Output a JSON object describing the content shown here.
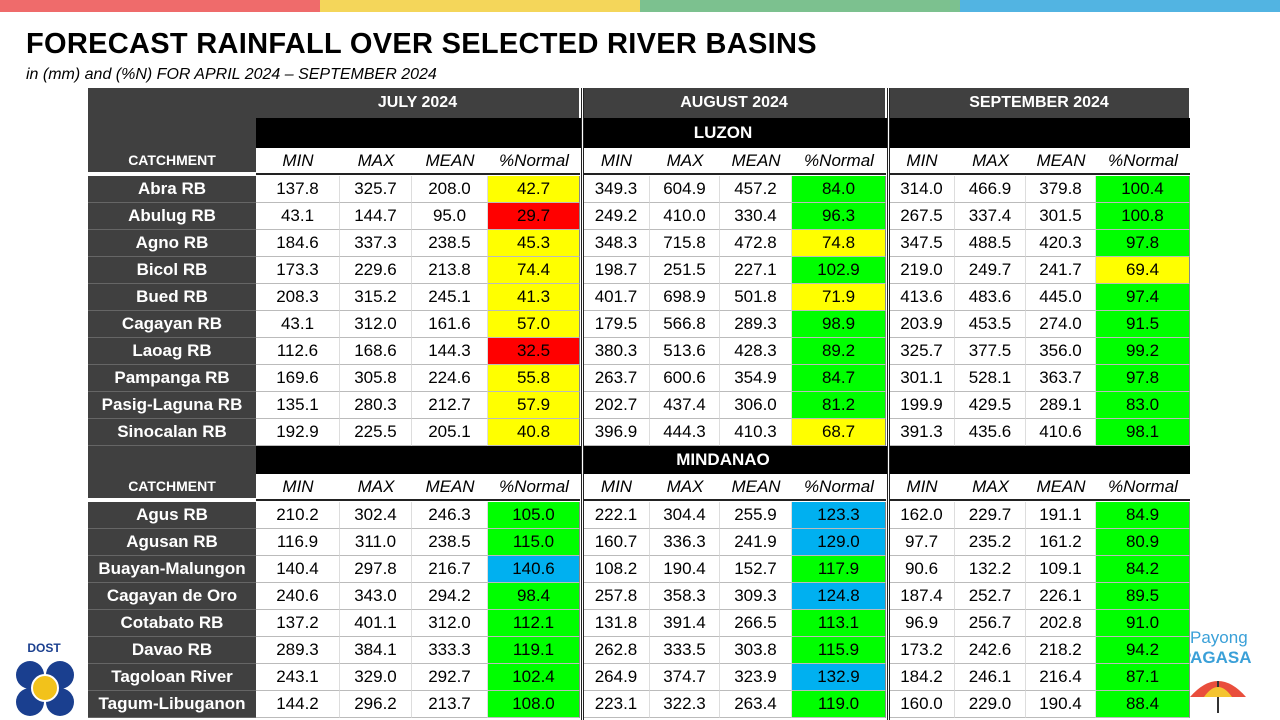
{
  "header": {
    "title": "FORECAST RAINFALL OVER SELECTED RIVER BASINS",
    "subtitle": "in (mm) and (%N) FOR  APRIL 2024 – SEPTEMBER 2024"
  },
  "table": {
    "months": [
      "JULY 2024",
      "AUGUST 2024",
      "SEPTEMBER 2024"
    ],
    "columns": [
      "MIN",
      "MAX",
      "MEAN",
      "%Normal"
    ],
    "catchment_label": "CATCHMENT",
    "sections": [
      {
        "region": "LUZON",
        "rows": [
          {
            "name": "Abra RB",
            "cells": [
              "137.8",
              "325.7",
              "208.0",
              "42.7",
              "349.3",
              "604.9",
              "457.2",
              "84.0",
              "314.0",
              "466.9",
              "379.8",
              "100.4"
            ],
            "normal_colors": [
              "#ffff00",
              "#00ff00",
              "#00ff00"
            ]
          },
          {
            "name": "Abulug RB",
            "cells": [
              "43.1",
              "144.7",
              "95.0",
              "29.7",
              "249.2",
              "410.0",
              "330.4",
              "96.3",
              "267.5",
              "337.4",
              "301.5",
              "100.8"
            ],
            "normal_colors": [
              "#ff0000",
              "#00ff00",
              "#00ff00"
            ]
          },
          {
            "name": "Agno RB",
            "cells": [
              "184.6",
              "337.3",
              "238.5",
              "45.3",
              "348.3",
              "715.8",
              "472.8",
              "74.8",
              "347.5",
              "488.5",
              "420.3",
              "97.8"
            ],
            "normal_colors": [
              "#ffff00",
              "#ffff00",
              "#00ff00"
            ]
          },
          {
            "name": "Bicol RB",
            "cells": [
              "173.3",
              "229.6",
              "213.8",
              "74.4",
              "198.7",
              "251.5",
              "227.1",
              "102.9",
              "219.0",
              "249.7",
              "241.7",
              "69.4"
            ],
            "normal_colors": [
              "#ffff00",
              "#00ff00",
              "#ffff00"
            ]
          },
          {
            "name": "Bued RB",
            "cells": [
              "208.3",
              "315.2",
              "245.1",
              "41.3",
              "401.7",
              "698.9",
              "501.8",
              "71.9",
              "413.6",
              "483.6",
              "445.0",
              "97.4"
            ],
            "normal_colors": [
              "#ffff00",
              "#ffff00",
              "#00ff00"
            ]
          },
          {
            "name": "Cagayan RB",
            "cells": [
              "43.1",
              "312.0",
              "161.6",
              "57.0",
              "179.5",
              "566.8",
              "289.3",
              "98.9",
              "203.9",
              "453.5",
              "274.0",
              "91.5"
            ],
            "normal_colors": [
              "#ffff00",
              "#00ff00",
              "#00ff00"
            ]
          },
          {
            "name": "Laoag RB",
            "cells": [
              "112.6",
              "168.6",
              "144.3",
              "32.5",
              "380.3",
              "513.6",
              "428.3",
              "89.2",
              "325.7",
              "377.5",
              "356.0",
              "99.2"
            ],
            "normal_colors": [
              "#ff0000",
              "#00ff00",
              "#00ff00"
            ]
          },
          {
            "name": "Pampanga RB",
            "cells": [
              "169.6",
              "305.8",
              "224.6",
              "55.8",
              "263.7",
              "600.6",
              "354.9",
              "84.7",
              "301.1",
              "528.1",
              "363.7",
              "97.8"
            ],
            "normal_colors": [
              "#ffff00",
              "#00ff00",
              "#00ff00"
            ]
          },
          {
            "name": "Pasig-Laguna RB",
            "cells": [
              "135.1",
              "280.3",
              "212.7",
              "57.9",
              "202.7",
              "437.4",
              "306.0",
              "81.2",
              "199.9",
              "429.5",
              "289.1",
              "83.0"
            ],
            "normal_colors": [
              "#ffff00",
              "#00ff00",
              "#00ff00"
            ]
          },
          {
            "name": "Sinocalan RB",
            "cells": [
              "192.9",
              "225.5",
              "205.1",
              "40.8",
              "396.9",
              "444.3",
              "410.3",
              "68.7",
              "391.3",
              "435.6",
              "410.6",
              "98.1"
            ],
            "normal_colors": [
              "#ffff00",
              "#ffff00",
              "#00ff00"
            ]
          }
        ]
      },
      {
        "region": "MINDANAO",
        "rows": [
          {
            "name": "Agus RB",
            "cells": [
              "210.2",
              "302.4",
              "246.3",
              "105.0",
              "222.1",
              "304.4",
              "255.9",
              "123.3",
              "162.0",
              "229.7",
              "191.1",
              "84.9"
            ],
            "normal_colors": [
              "#00ff00",
              "#00b0f0",
              "#00ff00"
            ]
          },
          {
            "name": "Agusan RB",
            "cells": [
              "116.9",
              "311.0",
              "238.5",
              "115.0",
              "160.7",
              "336.3",
              "241.9",
              "129.0",
              "97.7",
              "235.2",
              "161.2",
              "80.9"
            ],
            "normal_colors": [
              "#00ff00",
              "#00b0f0",
              "#00ff00"
            ]
          },
          {
            "name": "Buayan-Malungon",
            "cells": [
              "140.4",
              "297.8",
              "216.7",
              "140.6",
              "108.2",
              "190.4",
              "152.7",
              "117.9",
              "90.6",
              "132.2",
              "109.1",
              "84.2"
            ],
            "normal_colors": [
              "#00b0f0",
              "#00ff00",
              "#00ff00"
            ]
          },
          {
            "name": "Cagayan de Oro",
            "cells": [
              "240.6",
              "343.0",
              "294.2",
              "98.4",
              "257.8",
              "358.3",
              "309.3",
              "124.8",
              "187.4",
              "252.7",
              "226.1",
              "89.5"
            ],
            "normal_colors": [
              "#00ff00",
              "#00b0f0",
              "#00ff00"
            ]
          },
          {
            "name": "Cotabato RB",
            "cells": [
              "137.2",
              "401.1",
              "312.0",
              "112.1",
              "131.8",
              "391.4",
              "266.5",
              "113.1",
              "96.9",
              "256.7",
              "202.8",
              "91.0"
            ],
            "normal_colors": [
              "#00ff00",
              "#00ff00",
              "#00ff00"
            ]
          },
          {
            "name": "Davao RB",
            "cells": [
              "289.3",
              "384.1",
              "333.3",
              "119.1",
              "262.8",
              "333.5",
              "303.8",
              "115.9",
              "173.2",
              "242.6",
              "218.2",
              "94.2"
            ],
            "normal_colors": [
              "#00ff00",
              "#00ff00",
              "#00ff00"
            ]
          },
          {
            "name": "Tagoloan River",
            "cells": [
              "243.1",
              "329.0",
              "292.7",
              "102.4",
              "264.9",
              "374.7",
              "323.9",
              "132.9",
              "184.2",
              "246.1",
              "216.4",
              "87.1"
            ],
            "normal_colors": [
              "#00ff00",
              "#00b0f0",
              "#00ff00"
            ]
          },
          {
            "name": "Tagum-Libuganon",
            "cells": [
              "144.2",
              "296.2",
              "213.7",
              "108.0",
              "223.1",
              "322.3",
              "263.4",
              "119.0",
              "160.0",
              "229.0",
              "190.4",
              "88.4"
            ],
            "normal_colors": [
              "#00ff00",
              "#00ff00",
              "#00ff00"
            ]
          }
        ]
      }
    ]
  },
  "logos": {
    "left": "DOST",
    "right_top": "Payong",
    "right_bottom": "PAGASA"
  }
}
